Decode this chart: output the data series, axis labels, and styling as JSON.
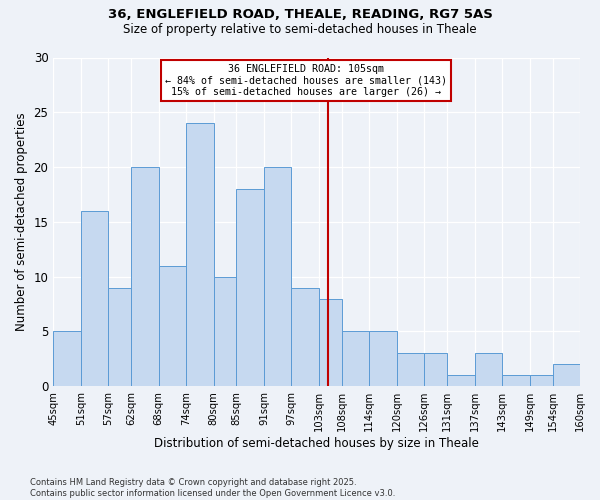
{
  "title1": "36, ENGLEFIELD ROAD, THEALE, READING, RG7 5AS",
  "title2": "Size of property relative to semi-detached houses in Theale",
  "xlabel": "Distribution of semi-detached houses by size in Theale",
  "ylabel": "Number of semi-detached properties",
  "footer1": "Contains HM Land Registry data © Crown copyright and database right 2025.",
  "footer2": "Contains public sector information licensed under the Open Government Licence v3.0.",
  "annotation_line1": "36 ENGLEFIELD ROAD: 105sqm",
  "annotation_line2": "← 84% of semi-detached houses are smaller (143)",
  "annotation_line3": "15% of semi-detached houses are larger (26) →",
  "bar_edges": [
    45,
    51,
    57,
    62,
    68,
    74,
    80,
    85,
    91,
    97,
    103,
    108,
    114,
    120,
    126,
    131,
    137,
    143,
    149,
    154,
    160
  ],
  "bar_heights": [
    5,
    16,
    9,
    20,
    11,
    24,
    10,
    18,
    20,
    9,
    8,
    5,
    5,
    3,
    3,
    1,
    3,
    1,
    1,
    2
  ],
  "property_value": 105,
  "bar_fill": "#c6d9f0",
  "bar_edge": "#5b9bd5",
  "vline_color": "#c00000",
  "annotation_box_color": "#c00000",
  "background_color": "#eef2f8",
  "ylim": [
    0,
    30
  ],
  "yticks": [
    0,
    5,
    10,
    15,
    20,
    25,
    30
  ],
  "tick_labels": [
    "45sqm",
    "51sqm",
    "57sqm",
    "62sqm",
    "68sqm",
    "74sqm",
    "80sqm",
    "85sqm",
    "91sqm",
    "97sqm",
    "103sqm",
    "108sqm",
    "114sqm",
    "120sqm",
    "126sqm",
    "131sqm",
    "137sqm",
    "143sqm",
    "149sqm",
    "154sqm",
    "160sqm"
  ]
}
